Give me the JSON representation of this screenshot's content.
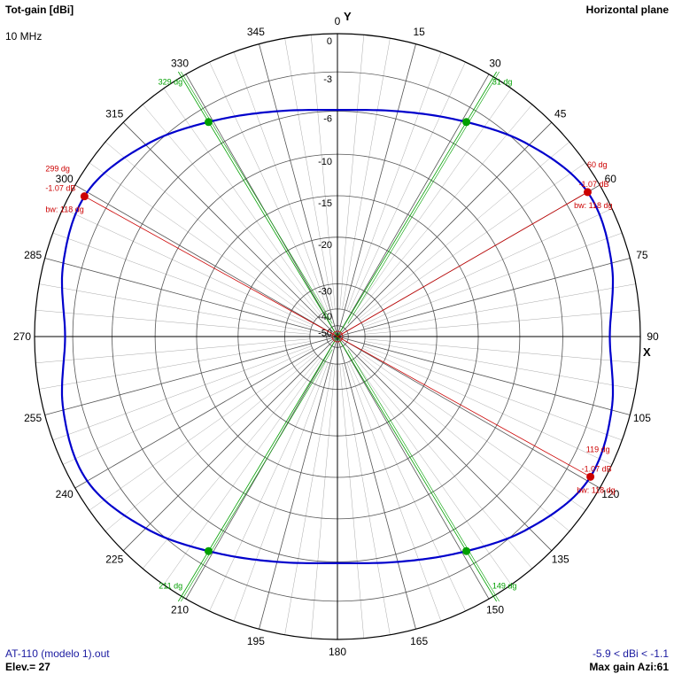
{
  "header": {
    "title": "Tot-gain [dBi]",
    "frequency": "10 MHz",
    "plane": "Horizontal plane"
  },
  "axes": {
    "y": "Y",
    "x": "X"
  },
  "footer": {
    "file": "AT-110 (modelo 1).out",
    "elevation": "Elev.= 27",
    "range": "-5.9 < dBi < -1.1",
    "max_gain": "Max gain Azi:61"
  },
  "colors": {
    "pattern": "#0000cc",
    "markers_red": "#cc0000",
    "markers_green": "#00a000",
    "grid": "#444444",
    "text_blue": "#1a1aa0"
  },
  "chart_data": {
    "type": "polar",
    "title": "Tot-gain [dBi]",
    "plane": "Horizontal plane",
    "radial_ticks": [
      "0",
      "-3",
      "-6",
      "-10",
      "-15",
      "-20",
      "-30",
      "-40",
      "-50"
    ],
    "angle_ticks": [
      "0",
      "15",
      "30",
      "45",
      "60",
      "75",
      "90",
      "105",
      "120",
      "135",
      "150",
      "165",
      "180",
      "195",
      "210",
      "225",
      "240",
      "255",
      "270",
      "285",
      "300",
      "315",
      "330",
      "345"
    ],
    "ring_radii_norm": [
      1.0,
      0.874,
      0.744,
      0.602,
      0.465,
      0.328,
      0.174,
      0.091,
      0.036
    ],
    "pattern": {
      "azimuth_deg": [
        0,
        15,
        30,
        45,
        60,
        75,
        90,
        105,
        120,
        135,
        150,
        165,
        180,
        195,
        210,
        225,
        240,
        255,
        270,
        285,
        300,
        315,
        330,
        345
      ],
      "gain_dbi": [
        -5.9,
        -5.4,
        -4.2,
        -2.5,
        -1.1,
        -1.5,
        -2.4,
        -1.5,
        -1.1,
        -2.5,
        -4.2,
        -5.4,
        -5.9,
        -5.4,
        -4.2,
        -2.5,
        -1.1,
        -1.5,
        -2.4,
        -1.5,
        -1.1,
        -2.5,
        -4.2,
        -5.4
      ]
    },
    "red_markers": [
      {
        "angle_deg": 60,
        "label": "60 dg",
        "gain": "-1.07 dB",
        "bw": "bw: 118 dg"
      },
      {
        "angle_deg": 119,
        "label": "119 dg",
        "gain": "-1.07 dB",
        "bw": "bw: 118 dg"
      },
      {
        "angle_deg": 299,
        "label": "299 dg",
        "gain": "-1.07 dB",
        "bw": "bw: 118 dg"
      }
    ],
    "green_markers": [
      {
        "angle_deg": 31,
        "label": "31 dg"
      },
      {
        "angle_deg": 149,
        "label": "149 dg"
      },
      {
        "angle_deg": 211,
        "label": "211 dg"
      },
      {
        "angle_deg": 329,
        "label": "329 dg"
      }
    ]
  }
}
